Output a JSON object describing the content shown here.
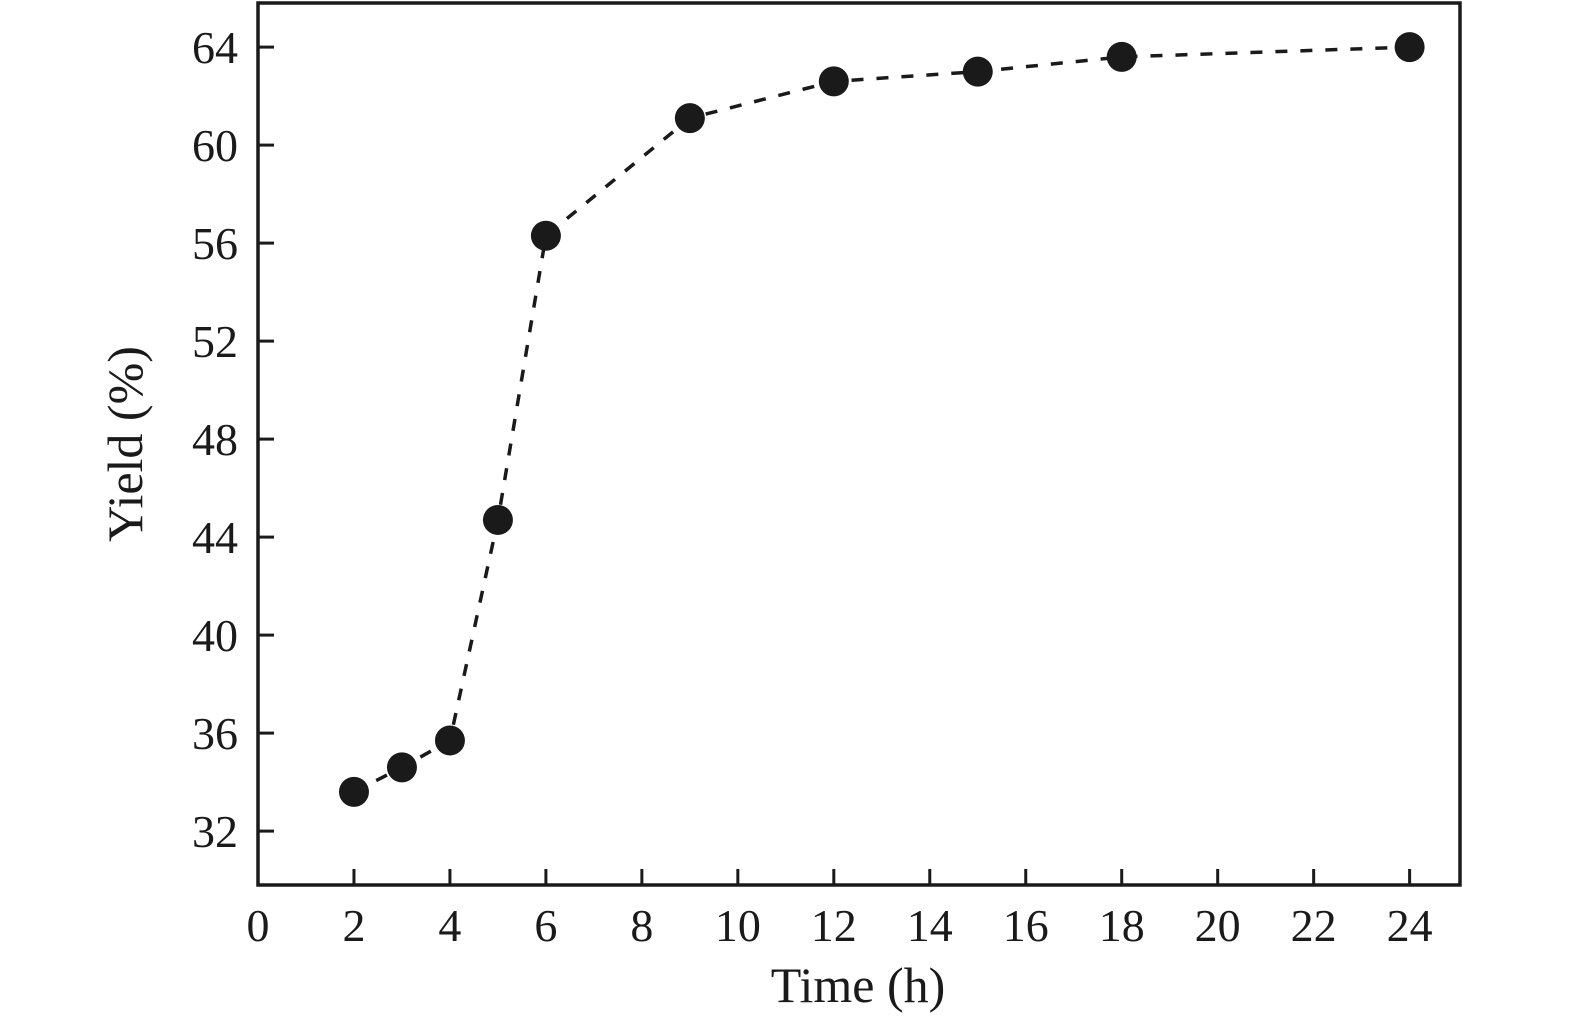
{
  "chart_data": {
    "type": "scatter",
    "title": "",
    "xlabel": "Time (h)",
    "ylabel": "Yield (%)",
    "x": [
      2,
      3,
      4,
      5,
      6,
      9,
      12,
      15,
      18,
      24
    ],
    "y": [
      33.6,
      34.6,
      35.7,
      44.7,
      56.3,
      61.1,
      62.6,
      63.0,
      63.6,
      64.0
    ],
    "xlim": [
      0,
      25.05
    ],
    "ylim": [
      29.8,
      65.8
    ],
    "xticks": [
      0,
      2,
      4,
      6,
      8,
      10,
      12,
      14,
      16,
      18,
      20,
      22,
      24
    ],
    "yticks": [
      32,
      36,
      40,
      44,
      48,
      52,
      56,
      60,
      64
    ],
    "line_style": "dashed",
    "marker": "circle-filled",
    "marker_radius": 15,
    "color": "#1a1a1a",
    "grid": false,
    "legend": null
  }
}
